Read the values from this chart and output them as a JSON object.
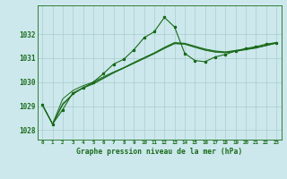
{
  "title": "Graphe pression niveau de la mer (hPa)",
  "bg_color": "#cce8ec",
  "grid_color": "#aacccc",
  "line_color": "#1a6b1a",
  "xlim": [
    -0.5,
    23.5
  ],
  "ylim": [
    1027.6,
    1033.2
  ],
  "yticks": [
    1028,
    1029,
    1030,
    1031,
    1032
  ],
  "xtick_labels": [
    "0",
    "1",
    "2",
    "3",
    "4",
    "5",
    "6",
    "7",
    "8",
    "9",
    "10",
    "11",
    "12",
    "13",
    "14",
    "15",
    "16",
    "17",
    "18",
    "19",
    "20",
    "21",
    "22",
    "23"
  ],
  "series1_x": [
    0,
    1,
    2,
    3,
    4,
    5,
    6,
    7,
    8,
    9,
    10,
    11,
    12,
    13,
    14,
    15,
    16,
    17,
    18,
    19,
    20,
    21,
    22,
    23
  ],
  "series1_y": [
    1029.05,
    1028.25,
    1028.85,
    1029.55,
    1029.75,
    1030.0,
    1030.35,
    1030.75,
    1030.95,
    1031.35,
    1031.85,
    1032.1,
    1032.7,
    1032.3,
    1031.2,
    1030.9,
    1030.85,
    1031.05,
    1031.15,
    1031.3,
    1031.4,
    1031.48,
    1031.58,
    1031.65
  ],
  "series2_x": [
    0,
    1,
    2,
    3,
    4,
    5,
    6,
    7,
    8,
    9,
    10,
    11,
    12,
    13,
    14,
    15,
    16,
    17,
    18,
    19,
    20,
    21,
    22,
    23
  ],
  "series2_y": [
    1029.05,
    1028.25,
    1029.3,
    1029.65,
    1029.85,
    1030.0,
    1030.22,
    1030.42,
    1030.6,
    1030.82,
    1031.02,
    1031.22,
    1031.45,
    1031.65,
    1031.62,
    1031.5,
    1031.38,
    1031.3,
    1031.26,
    1031.32,
    1031.38,
    1031.44,
    1031.54,
    1031.64
  ],
  "series3_x": [
    0,
    1,
    2,
    3,
    4,
    5,
    6,
    7,
    8,
    9,
    10,
    11,
    12,
    13,
    14,
    15,
    16,
    17,
    18,
    19,
    20,
    21,
    22,
    23
  ],
  "series3_y": [
    1029.05,
    1028.25,
    1029.1,
    1029.5,
    1029.75,
    1029.92,
    1030.15,
    1030.38,
    1030.58,
    1030.78,
    1030.98,
    1031.18,
    1031.4,
    1031.6,
    1031.58,
    1031.45,
    1031.33,
    1031.25,
    1031.22,
    1031.28,
    1031.35,
    1031.42,
    1031.52,
    1031.62
  ],
  "series4_x": [
    0,
    1,
    2,
    3,
    4,
    5,
    6,
    7,
    8,
    9,
    10,
    11,
    12,
    13,
    14,
    15,
    16,
    17,
    18,
    19,
    20,
    21,
    22,
    23
  ],
  "series4_y": [
    1029.05,
    1028.25,
    1029.05,
    1029.5,
    1029.78,
    1029.95,
    1030.18,
    1030.4,
    1030.6,
    1030.8,
    1031.0,
    1031.2,
    1031.42,
    1031.62,
    1031.6,
    1031.47,
    1031.35,
    1031.27,
    1031.24,
    1031.3,
    1031.37,
    1031.43,
    1031.53,
    1031.63
  ]
}
